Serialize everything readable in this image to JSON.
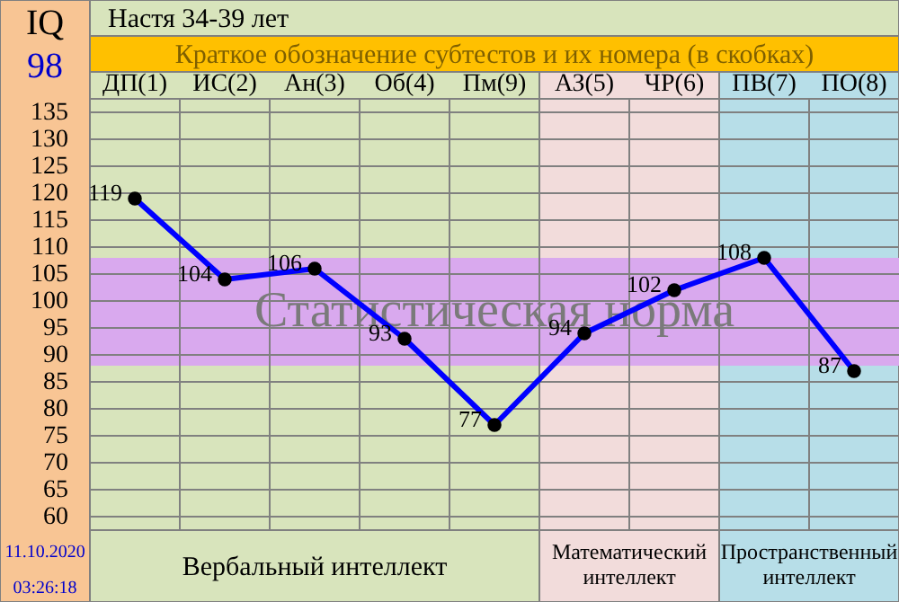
{
  "chart_data": {
    "type": "line",
    "title": "Настя 34-39 лет",
    "subtitle": "Краткое обозначение субтестов и их номера (в скобках)",
    "ylabel": "IQ",
    "categories": [
      "ДП(1)",
      "ИС(2)",
      "Ан(3)",
      "Об(4)",
      "Пм(9)",
      "АЗ(5)",
      "ЧР(6)",
      "ПВ(7)",
      "ПО(8)"
    ],
    "series": [
      {
        "color": "#0000ff",
        "values": [
          119,
          104,
          106,
          93,
          77,
          94,
          102,
          108,
          87
        ]
      }
    ],
    "ylim": [
      57.5,
      137.5
    ],
    "yticks": [
      60,
      65,
      70,
      75,
      80,
      85,
      90,
      95,
      100,
      105,
      110,
      115,
      120,
      125,
      130,
      135
    ],
    "bands": [
      {
        "axis": "x",
        "from": "ДП(1)",
        "to": "Пм(9)",
        "label": "Вербальный интеллект",
        "color": "#d8e4bc"
      },
      {
        "axis": "x",
        "from": "АЗ(5)",
        "to": "ЧР(6)",
        "label": "Математический интеллект",
        "color": "#f2dcdb"
      },
      {
        "axis": "x",
        "from": "ПВ(7)",
        "to": "ПО(8)",
        "label": "Пространственный интеллект",
        "color": "#b7dee8"
      },
      {
        "axis": "y",
        "from": 88,
        "to": 108,
        "label": "Статистическая норма",
        "color": "#d9a9ee"
      }
    ],
    "annotations": [
      "98",
      "11.10.2020",
      "03:26:18"
    ],
    "grid": true,
    "marker": "circle",
    "line_style": "solid",
    "data_labels": true
  }
}
